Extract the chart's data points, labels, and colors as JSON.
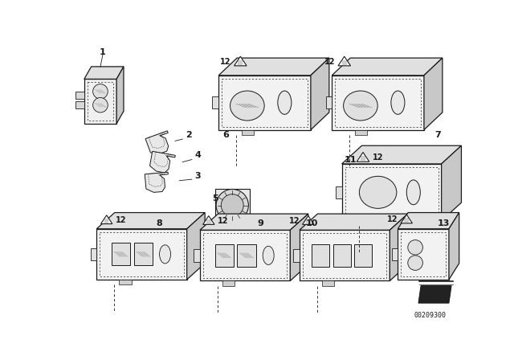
{
  "background_color": "#ffffff",
  "line_color": "#1a1a1a",
  "part_number": "00209300",
  "fig_w": 6.4,
  "fig_h": 4.48,
  "dpi": 100
}
